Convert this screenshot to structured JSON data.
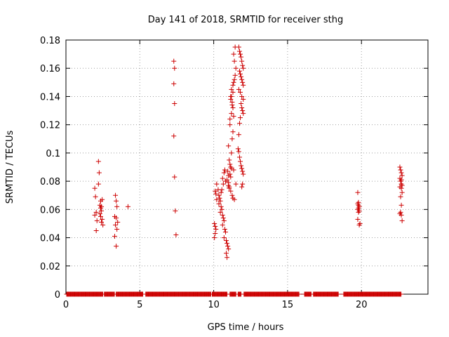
{
  "chart_data": {
    "type": "scatter",
    "title": "Day 141 of 2018, SRMTID for receiver sthg",
    "xlabel": "GPS time / hours",
    "ylabel": "SRMTID / TECUs",
    "xlim": [
      0,
      24.5
    ],
    "ylim": [
      0,
      0.18
    ],
    "x_ticks": [
      {
        "value": 0,
        "label": "0"
      },
      {
        "value": 5,
        "label": "5"
      },
      {
        "value": 10,
        "label": "10"
      },
      {
        "value": 15,
        "label": "15"
      },
      {
        "value": 20,
        "label": "20"
      }
    ],
    "y_ticks": [
      {
        "value": 0,
        "label": "0"
      },
      {
        "value": 0.02,
        "label": "0.02"
      },
      {
        "value": 0.04,
        "label": "0.04"
      },
      {
        "value": 0.06,
        "label": "0.06"
      },
      {
        "value": 0.08,
        "label": "0.08"
      },
      {
        "value": 0.1,
        "label": "0.1"
      },
      {
        "value": 0.12,
        "label": "0.12"
      },
      {
        "value": 0.14,
        "label": "0.14"
      },
      {
        "value": 0.16,
        "label": "0.16"
      },
      {
        "value": 0.18,
        "label": "0.18"
      }
    ],
    "grid": true,
    "marker": "+",
    "color": "#cc0000",
    "baseline_segments": [
      [
        0.05,
        2.5
      ],
      [
        2.6,
        3.3
      ],
      [
        3.4,
        5.2
      ],
      [
        5.4,
        9.8
      ],
      [
        9.9,
        10.9
      ],
      [
        11.1,
        11.5
      ],
      [
        11.65,
        11.85
      ],
      [
        12.05,
        15.8
      ],
      [
        16.15,
        16.6
      ],
      [
        16.75,
        18.45
      ],
      [
        18.8,
        22.7
      ]
    ],
    "baseline_step": 0.04,
    "series": [
      {
        "name": "SRMTID",
        "x": [
          1.95,
          2.0,
          2.05,
          1.95,
          2.05,
          2.1,
          2.2,
          2.25,
          2.2,
          2.3,
          2.35,
          2.4,
          2.3,
          2.35,
          2.45,
          2.4,
          2.5,
          2.35,
          2.4,
          2.45,
          3.35,
          3.4,
          3.45,
          3.3,
          3.4,
          3.35,
          3.5,
          3.45,
          3.3,
          3.4,
          4.2,
          7.3,
          7.35,
          7.3,
          7.35,
          7.3,
          7.35,
          7.4,
          7.45,
          10.05,
          10.1,
          10.15,
          10.1,
          10.05,
          10.2,
          10.15,
          10.1,
          10.2,
          10.3,
          10.35,
          10.4,
          10.45,
          10.35,
          10.5,
          10.55,
          10.45,
          10.6,
          10.65,
          10.7,
          10.6,
          10.75,
          10.8,
          10.7,
          10.85,
          10.9,
          10.95,
          11.0,
          10.85,
          10.9,
          11.0,
          10.95,
          11.05,
          10.8,
          10.65,
          10.55,
          10.5,
          10.6,
          10.7,
          10.75,
          10.9,
          11.0,
          11.0,
          11.05,
          11.1,
          11.15,
          11.2,
          11.1,
          11.15,
          11.2,
          11.25,
          11.3,
          11.1,
          11.2,
          11.3,
          11.25,
          11.15,
          11.2,
          11.3,
          11.35,
          11.4,
          11.45,
          11.5,
          11.4,
          11.35,
          11.45,
          11.3,
          11.2,
          11.15,
          11.25,
          11.35,
          11.1,
          11.0,
          11.05,
          11.15,
          11.25,
          11.3,
          11.4,
          11.5,
          11.35,
          11.7,
          11.75,
          11.8,
          11.85,
          11.9,
          11.95,
          12.0,
          11.75,
          11.8,
          11.85,
          11.9,
          11.95,
          12.0,
          11.7,
          11.8,
          11.9,
          12.0,
          11.85,
          11.9,
          11.95,
          12.0,
          11.8,
          11.75,
          11.7,
          11.65,
          11.7,
          11.75,
          11.8,
          11.85,
          11.9,
          11.95,
          12.0,
          11.95,
          11.9,
          19.75,
          19.8,
          19.85,
          19.8,
          19.75,
          19.85,
          19.8,
          19.75,
          19.9,
          19.85,
          19.8,
          19.75,
          22.6,
          22.65,
          22.7,
          22.75,
          22.6,
          22.65,
          22.7,
          22.75,
          22.6,
          22.7,
          22.75,
          22.65,
          22.7,
          22.6,
          22.65,
          22.7,
          22.75,
          22.7
        ],
        "y": [
          0.075,
          0.069,
          0.058,
          0.056,
          0.045,
          0.052,
          0.094,
          0.086,
          0.078,
          0.063,
          0.061,
          0.059,
          0.057,
          0.055,
          0.053,
          0.051,
          0.049,
          0.066,
          0.062,
          0.067,
          0.07,
          0.066,
          0.062,
          0.055,
          0.054,
          0.049,
          0.051,
          0.046,
          0.041,
          0.034,
          0.062,
          0.165,
          0.16,
          0.149,
          0.135,
          0.112,
          0.083,
          0.059,
          0.042,
          0.05,
          0.048,
          0.046,
          0.043,
          0.04,
          0.067,
          0.071,
          0.073,
          0.078,
          0.074,
          0.07,
          0.068,
          0.066,
          0.064,
          0.062,
          0.06,
          0.058,
          0.056,
          0.054,
          0.052,
          0.049,
          0.046,
          0.044,
          0.04,
          0.038,
          0.036,
          0.034,
          0.032,
          0.029,
          0.026,
          0.084,
          0.087,
          0.076,
          0.08,
          0.078,
          0.074,
          0.072,
          0.082,
          0.086,
          0.088,
          0.081,
          0.079,
          0.105,
          0.095,
          0.092,
          0.09,
          0.089,
          0.085,
          0.083,
          0.1,
          0.11,
          0.115,
          0.124,
          0.128,
          0.132,
          0.136,
          0.14,
          0.145,
          0.148,
          0.15,
          0.152,
          0.155,
          0.16,
          0.165,
          0.17,
          0.175,
          0.143,
          0.14,
          0.138,
          0.134,
          0.126,
          0.12,
          0.077,
          0.075,
          0.073,
          0.07,
          0.068,
          0.067,
          0.078,
          0.088,
          0.175,
          0.172,
          0.17,
          0.168,
          0.165,
          0.162,
          0.16,
          0.158,
          0.156,
          0.154,
          0.152,
          0.15,
          0.148,
          0.145,
          0.143,
          0.14,
          0.138,
          0.135,
          0.132,
          0.13,
          0.128,
          0.125,
          0.121,
          0.113,
          0.103,
          0.101,
          0.097,
          0.094,
          0.091,
          0.089,
          0.087,
          0.085,
          0.078,
          0.076,
          0.072,
          0.065,
          0.062,
          0.061,
          0.06,
          0.059,
          0.058,
          0.053,
          0.05,
          0.049,
          0.063,
          0.064,
          0.09,
          0.088,
          0.086,
          0.084,
          0.082,
          0.08,
          0.078,
          0.077,
          0.076,
          0.075,
          0.072,
          0.069,
          0.063,
          0.057,
          0.058,
          0.056,
          0.052,
          0.081
        ]
      }
    ]
  }
}
